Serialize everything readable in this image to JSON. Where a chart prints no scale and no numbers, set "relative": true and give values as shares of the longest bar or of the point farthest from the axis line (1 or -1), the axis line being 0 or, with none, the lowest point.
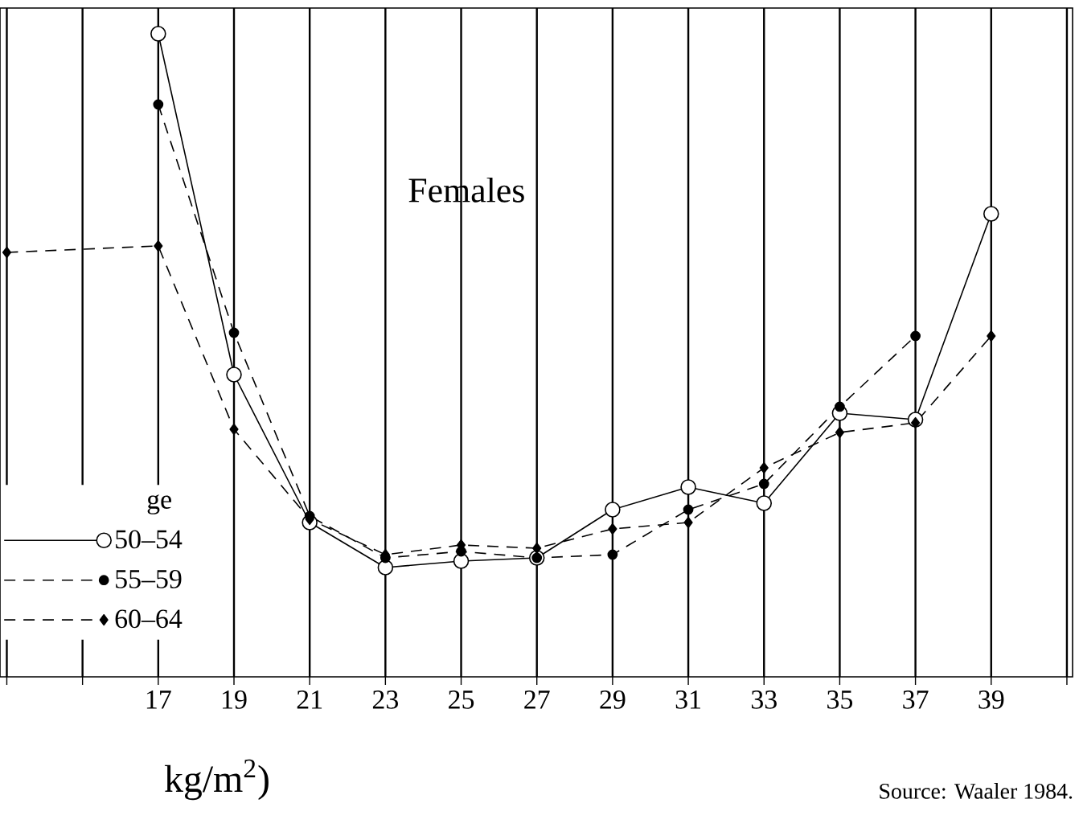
{
  "chart_data": {
    "type": "line",
    "relative": true,
    "xlabel": "kg/m$^{2}$)",
    "legend_title": "ge",
    "annotations": [
      "Females",
      "Source: Waaler 1984."
    ],
    "xlim": [
      12.82,
      41.15
    ],
    "xticks": [
      {
        "value": 13,
        "label": null
      },
      {
        "value": 15,
        "label": null
      },
      17,
      19,
      21,
      23,
      25,
      27,
      29,
      31,
      33,
      35,
      37,
      39,
      {
        "value": 41,
        "label": null
      }
    ],
    "grid": "x",
    "legend": "bottom left",
    "series": [
      {
        "name": "50–54",
        "color": "#ffffff",
        "marker": "circle",
        "line_style": "solid",
        "x": [
          17,
          19,
          21,
          23,
          25,
          27,
          29,
          31,
          33,
          35,
          37,
          39
        ],
        "values": [
          1.0,
          0.47,
          0.24,
          0.17,
          0.18,
          0.185,
          0.26,
          0.295,
          0.27,
          0.41,
          0.4,
          0.72
        ]
      },
      {
        "name": "55–59",
        "color": "#000000",
        "marker": "circle",
        "line_style": "dashed",
        "x": [
          17,
          19,
          21,
          23,
          25,
          27,
          29,
          31,
          33,
          35,
          37
        ],
        "values": [
          0.89,
          0.535,
          0.25,
          0.185,
          0.195,
          0.185,
          0.19,
          0.26,
          0.3,
          0.42,
          0.53
        ]
      },
      {
        "name": "60–64",
        "color": "#000000",
        "marker": "diamond",
        "line_style": "dashed",
        "x": [
          13,
          17,
          19,
          21,
          23,
          25,
          27,
          29,
          31,
          33,
          35,
          37,
          39
        ],
        "values": [
          0.66,
          0.67,
          0.385,
          0.245,
          0.19,
          0.205,
          0.2,
          0.23,
          0.24,
          0.325,
          0.38,
          0.395,
          0.53
        ]
      }
    ]
  }
}
